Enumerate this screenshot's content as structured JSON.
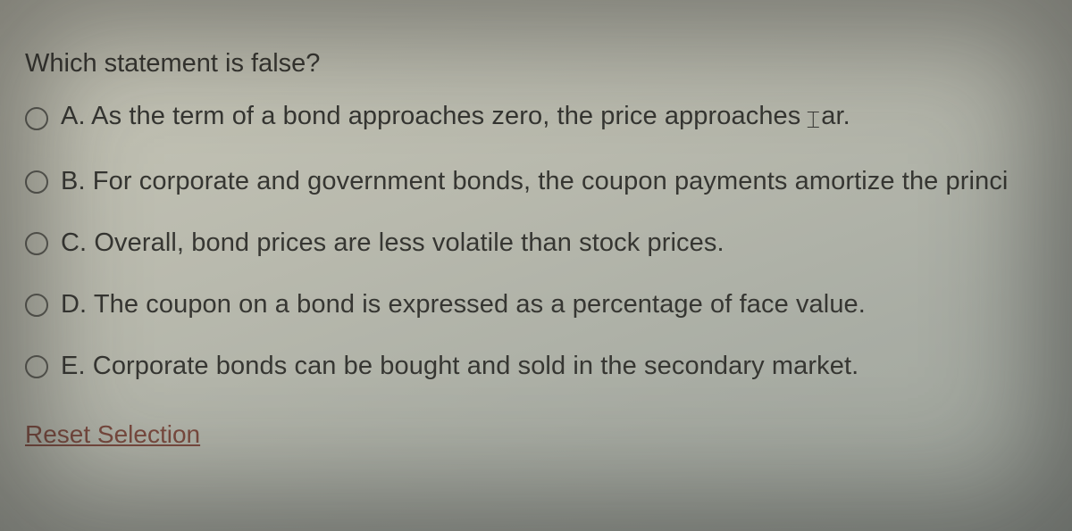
{
  "question": {
    "prompt": "Which statement is false?",
    "options": [
      {
        "label": "A.",
        "text_before_cursor": "As the term of a bond approaches zero, the price approaches ",
        "text_after_cursor": "ar.",
        "has_cursor": true
      },
      {
        "label": "B.",
        "text": "For corporate and government bonds, the coupon payments amortize the princi"
      },
      {
        "label": "C.",
        "text": "Overall, bond prices are less volatile than stock prices."
      },
      {
        "label": "D.",
        "text": "The coupon on a bond is expressed as a percentage of face value."
      },
      {
        "label": "E.",
        "text": "Corporate bonds can be bought and sold in the secondary market."
      }
    ],
    "reset_label": "Reset Selection"
  },
  "style": {
    "background_gradient": [
      "#c8c7b8",
      "#b8b9ad",
      "#a9ada4",
      "#9ea49c"
    ],
    "text_color": "#363632",
    "radio_border": "#5b5b54",
    "reset_color": "#7a4a3f",
    "font_size_pt": 22
  }
}
